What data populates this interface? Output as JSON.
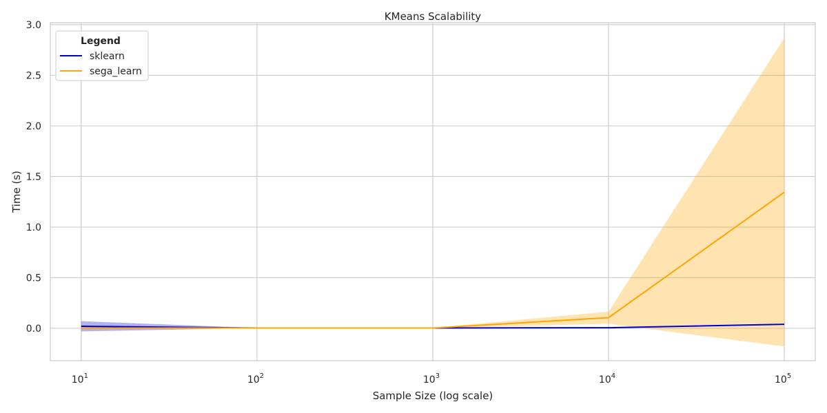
{
  "chart_data": {
    "type": "line",
    "title": "KMeans Scalability",
    "xlabel": "Sample Size (log scale)",
    "ylabel": "Time (s)",
    "x_scale": "log",
    "x": [
      10,
      100,
      1000,
      10000,
      100000
    ],
    "x_ticks": [
      {
        "base": "10",
        "exp": "1"
      },
      {
        "base": "10",
        "exp": "2"
      },
      {
        "base": "10",
        "exp": "3"
      },
      {
        "base": "10",
        "exp": "4"
      },
      {
        "base": "10",
        "exp": "5"
      }
    ],
    "xlim": [
      6.67,
      150000
    ],
    "ylim": [
      -0.32,
      3.02
    ],
    "y_ticks": [
      "0.0",
      "0.5",
      "1.0",
      "1.5",
      "2.0",
      "2.5",
      "3.0"
    ],
    "y_tick_values": [
      0.0,
      0.5,
      1.0,
      1.5,
      2.0,
      2.5,
      3.0
    ],
    "grid": true,
    "legend": {
      "title": "Legend",
      "position": "top-left"
    },
    "series": [
      {
        "name": "sklearn",
        "color": "#0000cc",
        "values": [
          0.02,
          0.003,
          0.003,
          0.006,
          0.04
        ],
        "lower": [
          -0.03,
          0.002,
          0.002,
          0.004,
          0.035
        ],
        "upper": [
          0.07,
          0.004,
          0.004,
          0.008,
          0.045
        ]
      },
      {
        "name": "sega_learn",
        "color": "#ffa500",
        "values": [
          0.003,
          0.003,
          0.003,
          0.105,
          1.345
        ],
        "lower": [
          0.002,
          0.002,
          0.002,
          0.045,
          -0.18
        ],
        "upper": [
          0.004,
          0.004,
          0.004,
          0.165,
          2.87
        ]
      }
    ]
  }
}
